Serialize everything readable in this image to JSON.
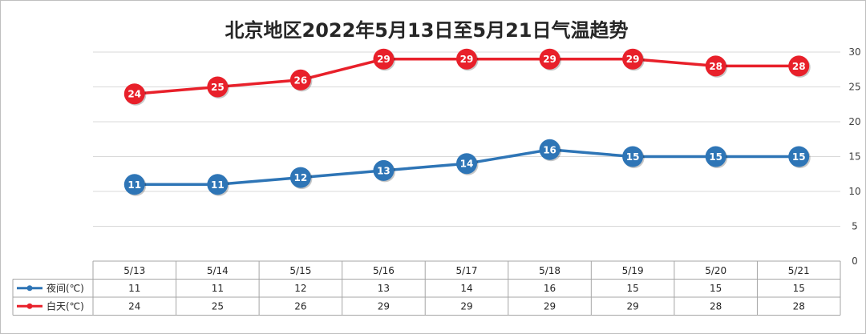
{
  "chart_data": {
    "type": "line",
    "title": "北京地区2022年5月13日至5月21日气温趋势",
    "categories": [
      "5/13",
      "5/14",
      "5/15",
      "5/16",
      "5/17",
      "5/18",
      "5/19",
      "5/20",
      "5/21"
    ],
    "series": [
      {
        "name": "夜间(℃)",
        "color": "#2e75b6",
        "values": [
          11,
          11,
          12,
          13,
          14,
          16,
          15,
          15,
          15
        ]
      },
      {
        "name": "白天(℃)",
        "color": "#e8202a",
        "values": [
          24,
          25,
          26,
          29,
          29,
          29,
          29,
          28,
          28
        ]
      }
    ],
    "ylim": [
      0,
      30
    ],
    "y_ticks": [
      0,
      5,
      10,
      15,
      20,
      25,
      30
    ],
    "y_axis_side": "right",
    "grid": true,
    "data_table": true,
    "legend_placement": "data-table"
  }
}
